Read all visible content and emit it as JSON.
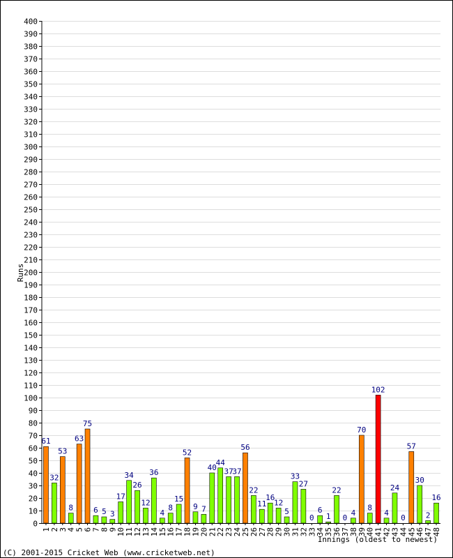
{
  "chart_data": {
    "type": "bar",
    "ylabel": "Runs",
    "xlabel": "Innings (oldest to newest)",
    "ylim": [
      0,
      400
    ],
    "ytick_step": 10,
    "grid": true,
    "categories": [
      "1",
      "2",
      "3",
      "4",
      "5",
      "6",
      "7",
      "8",
      "9",
      "10",
      "11",
      "12",
      "13",
      "14",
      "15",
      "16",
      "17",
      "18",
      "19",
      "20",
      "21",
      "22",
      "23",
      "24",
      "25",
      "26",
      "27",
      "28",
      "29",
      "30",
      "31",
      "32",
      "33",
      "34",
      "35",
      "36",
      "37",
      "38",
      "39",
      "40",
      "41",
      "42",
      "43",
      "44",
      "45",
      "46",
      "47",
      "48"
    ],
    "values": [
      61,
      32,
      53,
      8,
      63,
      75,
      6,
      5,
      3,
      17,
      34,
      26,
      12,
      36,
      4,
      8,
      15,
      52,
      9,
      7,
      40,
      44,
      37,
      37,
      56,
      22,
      11,
      16,
      12,
      5,
      33,
      27,
      0,
      6,
      1,
      22,
      0,
      4,
      70,
      8,
      102,
      4,
      24,
      0,
      57,
      30,
      2,
      16
    ],
    "colors": {
      "under_50": "#80ff00",
      "fifty": "#ff8000",
      "hundred": "#ff0000",
      "value_label": "#000080",
      "grid": "#dddddd",
      "frame": "#000000"
    }
  },
  "footer": {
    "copyright": "(C) 2001-2015 Cricket Web (www.cricketweb.net)"
  }
}
